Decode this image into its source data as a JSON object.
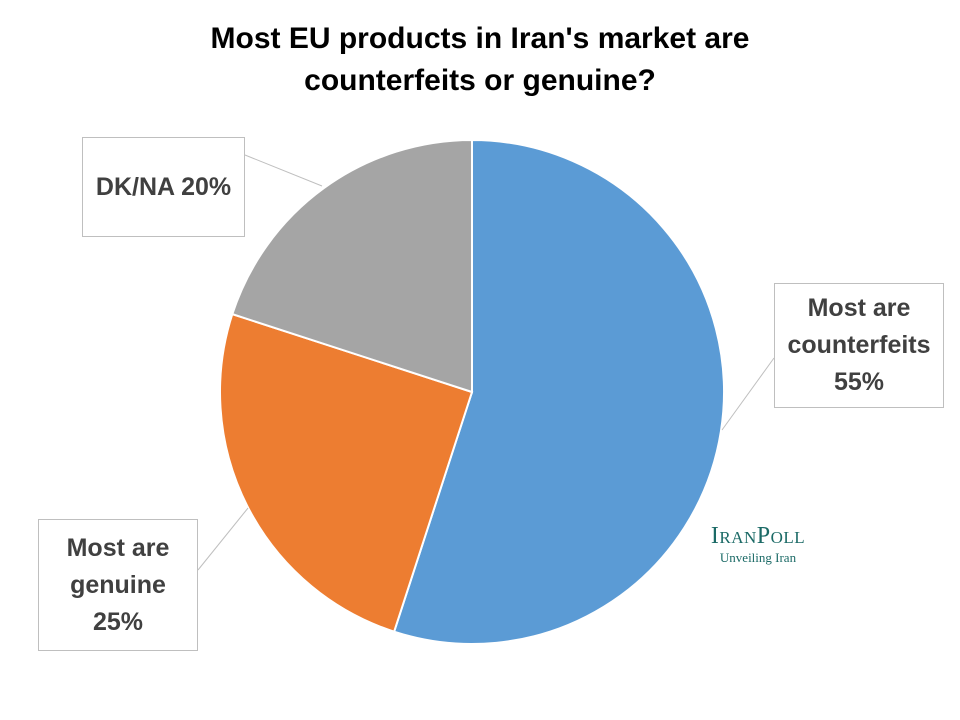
{
  "title_lines": [
    "Most EU products in Iran's market are",
    "counterfeits or genuine?"
  ],
  "chart_data": {
    "type": "pie",
    "title": "Most EU products in Iran's market are counterfeits or genuine?",
    "slices": [
      {
        "label": "Most are counterfeits",
        "value": 55,
        "display": [
          "Most are",
          "counterfeits",
          "55%"
        ],
        "color": "#5b9bd5"
      },
      {
        "label": "Most are genuine",
        "value": 25,
        "display": [
          "Most are",
          "genuine",
          "25%"
        ],
        "color": "#ed7d31"
      },
      {
        "label": "DK/NA",
        "value": 20,
        "display": [
          "DK/NA 20%"
        ],
        "color": "#a5a5a5"
      }
    ],
    "start_angle": "12 o'clock, clockwise",
    "legend": "none",
    "data_labels": "callouts"
  },
  "logo": {
    "name": "IranPoll",
    "tagline": "Unveiling Iran"
  }
}
